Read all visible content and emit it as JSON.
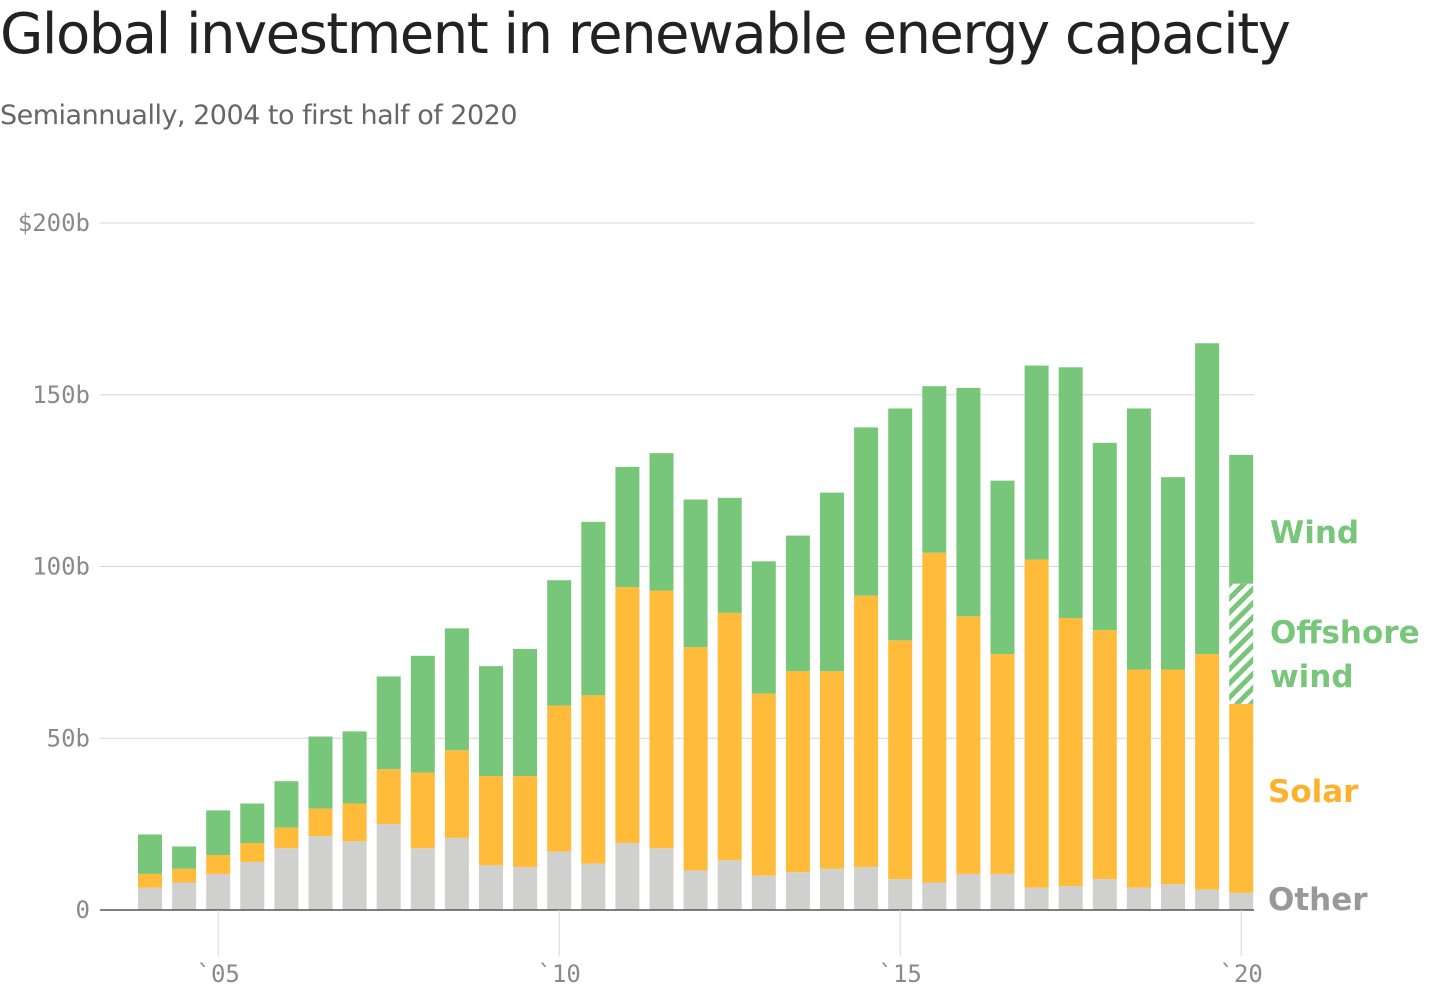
{
  "title": "Global investment in renewable energy capacity",
  "subtitle": "Semiannually, 2004 to first half of 2020",
  "colors": {
    "other": "#d0d0cf",
    "solar": "#ffbb39",
    "wind": "#78c679",
    "offshore_wind": "#78c679",
    "grid": "#d6d6d6",
    "axis": "#555555"
  },
  "chart_data": {
    "type": "bar",
    "stacked": true,
    "ylim": [
      0,
      200
    ],
    "y_ticks": [
      {
        "value": 0,
        "label": "0"
      },
      {
        "value": 50,
        "label": "50b"
      },
      {
        "value": 100,
        "label": "100b"
      },
      {
        "value": 150,
        "label": "150b"
      },
      {
        "value": 200,
        "label": "$200b"
      }
    ],
    "x_ticks": [
      {
        "value": 2005,
        "label": "`05"
      },
      {
        "value": 2010,
        "label": "`10"
      },
      {
        "value": 2015,
        "label": "`15"
      },
      {
        "value": 2020,
        "label": "`20"
      }
    ],
    "grid": true,
    "categories": [
      "H1 2004",
      "H2 2004",
      "H1 2005",
      "H2 2005",
      "H1 2006",
      "H2 2006",
      "H1 2007",
      "H2 2007",
      "H1 2008",
      "H2 2008",
      "H1 2009",
      "H2 2009",
      "H1 2010",
      "H2 2010",
      "H1 2011",
      "H2 2011",
      "H1 2012",
      "H2 2012",
      "H1 2013",
      "H2 2013",
      "H1 2014",
      "H2 2014",
      "H1 2015",
      "H2 2015",
      "H1 2016",
      "H2 2016",
      "H1 2017",
      "H2 2017",
      "H1 2018",
      "H2 2018",
      "H1 2019",
      "H2 2019",
      "H1 2020"
    ],
    "x": [
      2004.0,
      2004.5,
      2005.0,
      2005.5,
      2006.0,
      2006.5,
      2007.0,
      2007.5,
      2008.0,
      2008.5,
      2009.0,
      2009.5,
      2010.0,
      2010.5,
      2011.0,
      2011.5,
      2012.0,
      2012.5,
      2013.0,
      2013.5,
      2014.0,
      2014.5,
      2015.0,
      2015.5,
      2016.0,
      2016.5,
      2017.0,
      2017.5,
      2018.0,
      2018.5,
      2019.0,
      2019.5,
      2020.0
    ],
    "series": [
      {
        "name": "Other",
        "key": "other",
        "values": [
          6.5,
          8,
          10.5,
          14,
          18,
          21.5,
          20,
          25,
          18,
          21,
          13,
          12.5,
          17,
          13.5,
          19.5,
          18,
          11.5,
          14.5,
          10,
          11,
          12,
          12.5,
          9,
          8,
          10.5,
          10.5,
          6.5,
          7,
          9,
          6.5,
          7.5,
          6,
          5
        ]
      },
      {
        "name": "Solar",
        "key": "solar",
        "values": [
          4,
          4,
          5.5,
          5.5,
          6,
          8,
          11,
          16,
          22,
          25.5,
          26,
          26.5,
          42.5,
          49,
          74.5,
          75,
          65,
          72,
          53,
          58.5,
          57.5,
          79,
          69.5,
          96,
          75,
          64,
          95.5,
          78,
          72.5,
          63.5,
          62.5,
          68.5,
          55
        ]
      },
      {
        "name": "Offshore wind",
        "key": "offshore_wind",
        "values": [
          0,
          0,
          0,
          0,
          0,
          0,
          0,
          0,
          0,
          0,
          0,
          0,
          0,
          0,
          0,
          0,
          0,
          0,
          0,
          0,
          0,
          0,
          0,
          0,
          0,
          0,
          0,
          0,
          0,
          0,
          0,
          0,
          35
        ]
      },
      {
        "name": "Wind",
        "key": "wind",
        "values": [
          11.5,
          6.5,
          13,
          11.5,
          13.5,
          21,
          21,
          27,
          34,
          35.5,
          32,
          37,
          36.5,
          50.5,
          35,
          40,
          43,
          33.5,
          38.5,
          39.5,
          52,
          49,
          67.5,
          48.5,
          66.5,
          50.5,
          56.5,
          73,
          54.5,
          76,
          56,
          90.5,
          37.5
        ]
      }
    ],
    "series_labels": [
      {
        "key": "wind",
        "lines": [
          "Wind"
        ],
        "color_key": "wind"
      },
      {
        "key": "offshore_wind",
        "lines": [
          "Offshore",
          "wind"
        ],
        "color_key": "offshore_wind"
      },
      {
        "key": "solar",
        "lines": [
          "Solar"
        ],
        "color_key": "solar"
      },
      {
        "key": "other",
        "lines": [
          "Other"
        ],
        "color_key": "axis_other"
      }
    ],
    "label_colors": {
      "wind": "#78c679",
      "offshore_wind": "#78c679",
      "solar": "#ffb12b",
      "axis_other": "#999999"
    }
  }
}
